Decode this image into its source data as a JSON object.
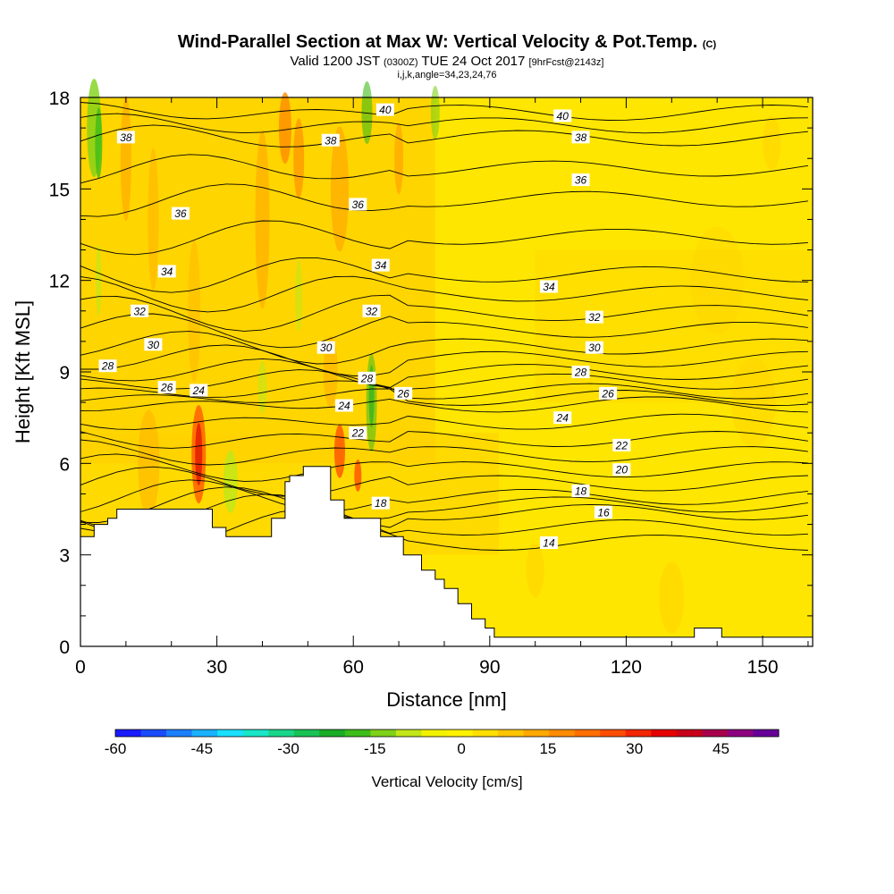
{
  "chart_data": [
    {
      "type": "heatmap",
      "title": "Wind-Parallel Section at Max W: Vertical Velocity & Pot.Temp.",
      "title_unit": "(C)",
      "subtitle": {
        "valid_prefix": "Valid 1200 JST",
        "valid_utc": "(0300Z)",
        "valid_date": "TUE 24 Oct 2017",
        "forecast": "[9hrFcst@2143z]",
        "grid_info": "i,j,k,angle=34,23,24,76"
      },
      "xlabel": "Distance [nm]",
      "ylabel": "Height [Kft MSL]",
      "xlim": [
        0,
        161
      ],
      "ylim": [
        0,
        18
      ],
      "xticks": [
        0,
        30,
        60,
        90,
        120,
        150
      ],
      "yticks": [
        0,
        3,
        6,
        9,
        12,
        15,
        18
      ],
      "grid": false,
      "terrain_profile": [
        [
          0,
          3.6
        ],
        [
          3,
          3.6
        ],
        [
          3,
          4.0
        ],
        [
          6,
          4.0
        ],
        [
          6,
          4.2
        ],
        [
          8,
          4.2
        ],
        [
          8,
          4.5
        ],
        [
          29,
          4.5
        ],
        [
          29,
          3.9
        ],
        [
          32,
          3.9
        ],
        [
          32,
          3.6
        ],
        [
          42,
          3.6
        ],
        [
          42,
          4.2
        ],
        [
          45,
          4.2
        ],
        [
          45,
          5.4
        ],
        [
          46,
          5.4
        ],
        [
          46,
          5.6
        ],
        [
          49,
          5.6
        ],
        [
          49,
          5.9
        ],
        [
          55,
          5.9
        ],
        [
          55,
          4.8
        ],
        [
          58,
          4.8
        ],
        [
          58,
          4.2
        ],
        [
          66,
          4.2
        ],
        [
          66,
          3.6
        ],
        [
          71,
          3.6
        ],
        [
          71,
          3.0
        ],
        [
          75,
          3.0
        ],
        [
          75,
          2.5
        ],
        [
          78,
          2.5
        ],
        [
          78,
          2.2
        ],
        [
          80,
          2.2
        ],
        [
          80,
          1.9
        ],
        [
          83,
          1.9
        ],
        [
          83,
          1.4
        ],
        [
          86,
          1.4
        ],
        [
          86,
          0.9
        ],
        [
          89,
          0.9
        ],
        [
          89,
          0.6
        ],
        [
          91,
          0.6
        ],
        [
          91,
          0.3
        ],
        [
          94,
          0.3
        ],
        [
          94,
          0.3
        ],
        [
          135,
          0.3
        ],
        [
          135,
          0.6
        ],
        [
          141,
          0.6
        ],
        [
          141,
          0.3
        ],
        [
          161,
          0.3
        ]
      ],
      "theta_contour_labels": [
        {
          "value": "40",
          "x": 67,
          "y": 17.6
        },
        {
          "value": "40",
          "x": 106,
          "y": 17.4
        },
        {
          "value": "38",
          "x": 10,
          "y": 16.7
        },
        {
          "value": "38",
          "x": 55,
          "y": 16.6
        },
        {
          "value": "38",
          "x": 110,
          "y": 16.7
        },
        {
          "value": "36",
          "x": 110,
          "y": 15.3
        },
        {
          "value": "36",
          "x": 61,
          "y": 14.5
        },
        {
          "value": "36",
          "x": 22,
          "y": 14.2
        },
        {
          "value": "34",
          "x": 19,
          "y": 12.3
        },
        {
          "value": "34",
          "x": 66,
          "y": 12.5
        },
        {
          "value": "34",
          "x": 103,
          "y": 11.8
        },
        {
          "value": "32",
          "x": 13,
          "y": 11.0
        },
        {
          "value": "32",
          "x": 64,
          "y": 11.0
        },
        {
          "value": "32",
          "x": 113,
          "y": 10.8
        },
        {
          "value": "30",
          "x": 16,
          "y": 9.9
        },
        {
          "value": "30",
          "x": 54,
          "y": 9.8
        },
        {
          "value": "30",
          "x": 113,
          "y": 9.8
        },
        {
          "value": "28",
          "x": 6,
          "y": 9.2
        },
        {
          "value": "28",
          "x": 63,
          "y": 8.8
        },
        {
          "value": "28",
          "x": 110,
          "y": 9.0
        },
        {
          "value": "26",
          "x": 19,
          "y": 8.5
        },
        {
          "value": "26",
          "x": 71,
          "y": 8.3
        },
        {
          "value": "26",
          "x": 116,
          "y": 8.3
        },
        {
          "value": "24",
          "x": 26,
          "y": 8.4
        },
        {
          "value": "24",
          "x": 58,
          "y": 7.9
        },
        {
          "value": "24",
          "x": 106,
          "y": 7.5
        },
        {
          "value": "22",
          "x": 61,
          "y": 7.0
        },
        {
          "value": "22",
          "x": 119,
          "y": 6.6
        },
        {
          "value": "20",
          "x": 119,
          "y": 5.8
        },
        {
          "value": "18",
          "x": 110,
          "y": 5.1
        },
        {
          "value": "18",
          "x": 66,
          "y": 4.7
        },
        {
          "value": "16",
          "x": 115,
          "y": 4.4
        },
        {
          "value": "14",
          "x": 103,
          "y": 3.4
        }
      ],
      "colorbar": {
        "label": "Vertical Velocity [cm/s]",
        "ticks": [
          -60,
          -45,
          -30,
          -15,
          0,
          15,
          30,
          45
        ],
        "min": -60,
        "max": 50,
        "step": 5,
        "colors": [
          "#1a1aff",
          "#1a4cff",
          "#1a7fff",
          "#1ab2ff",
          "#1ae0ff",
          "#1ae6c8",
          "#19d68a",
          "#19c255",
          "#19ad26",
          "#3dbd19",
          "#7fd119",
          "#c2e619",
          "#f2f200",
          "#fff200",
          "#ffdf00",
          "#ffc400",
          "#ffa800",
          "#ff8c00",
          "#ff6f00",
          "#ff4d00",
          "#f22600",
          "#e60000",
          "#c8001a",
          "#a8004d",
          "#8c0080",
          "#660099"
        ]
      },
      "velocity_field_notes": [
        {
          "x": 26,
          "y": 6.2,
          "value": 30
        },
        {
          "x": 57,
          "y": 6.2,
          "value": 25
        },
        {
          "x": 47,
          "y": 17,
          "value": 20
        },
        {
          "x": 64,
          "y": 8,
          "value": -15
        },
        {
          "x": 3,
          "y": 16.5,
          "value": -20
        },
        {
          "x": 33,
          "y": 5.3,
          "value": -10
        }
      ]
    }
  ]
}
